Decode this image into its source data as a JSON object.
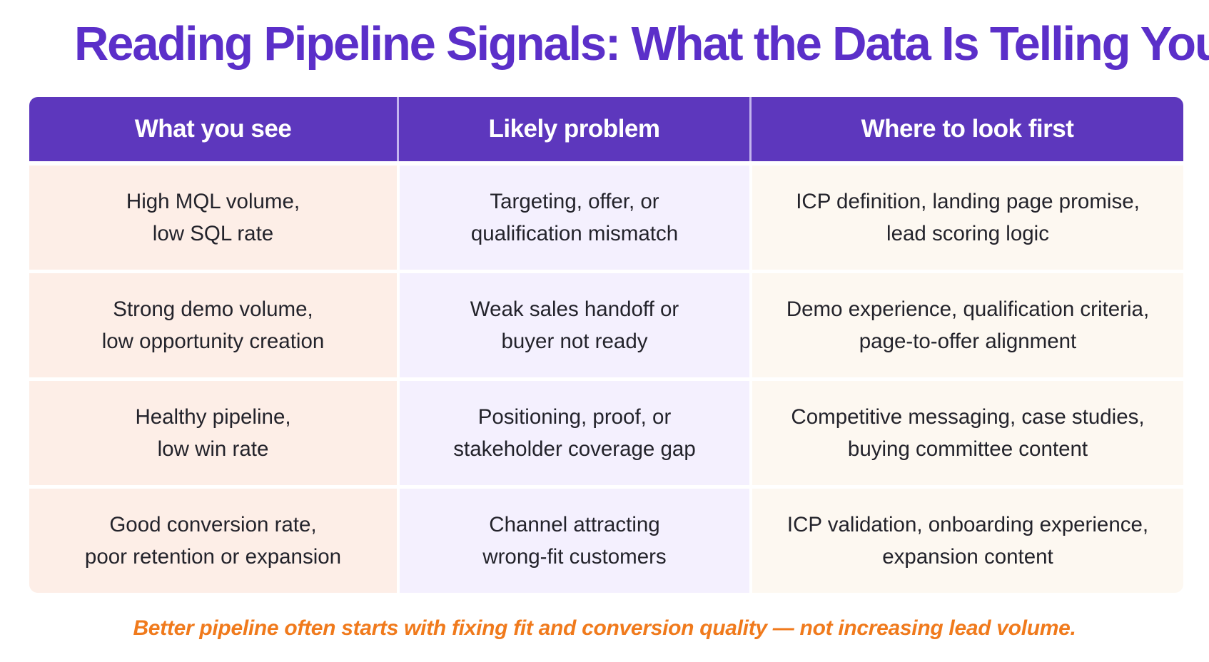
{
  "title": "Reading Pipeline Signals: What the Data Is Telling You",
  "table": {
    "headers": [
      "What you see",
      "Likely problem",
      "Where to look first"
    ],
    "rows": [
      {
        "what_you_see": [
          "High MQL volume,",
          "low SQL rate"
        ],
        "likely_problem": [
          "Targeting, offer, or",
          "qualification mismatch"
        ],
        "where_to_look": [
          "ICP definition, landing page promise,",
          "lead scoring logic"
        ]
      },
      {
        "what_you_see": [
          "Strong demo volume,",
          "low opportunity creation"
        ],
        "likely_problem": [
          "Weak sales handoff or",
          "buyer not ready"
        ],
        "where_to_look": [
          "Demo experience, qualification criteria,",
          "page-to-offer alignment"
        ]
      },
      {
        "what_you_see": [
          "Healthy pipeline,",
          "low win rate"
        ],
        "likely_problem": [
          "Positioning, proof, or",
          "stakeholder coverage gap"
        ],
        "where_to_look": [
          "Competitive messaging, case studies,",
          "buying committee content"
        ]
      },
      {
        "what_you_see": [
          "Good conversion rate,",
          "poor retention or expansion"
        ],
        "likely_problem": [
          "Channel attracting",
          "wrong-fit customers"
        ],
        "where_to_look": [
          "ICP validation, onboarding experience,",
          "expansion content"
        ]
      }
    ]
  },
  "footer": "Better pipeline often starts with fixing fit and conversion quality — not increasing lead volume.",
  "colors": {
    "title": "#5b2fc9",
    "header_bg": "#5d37bd",
    "col1_bg": "#fdeee7",
    "col2_bg": "#f4f0fe",
    "col3_bg": "#fdf8f1",
    "footer": "#f07a1c"
  }
}
